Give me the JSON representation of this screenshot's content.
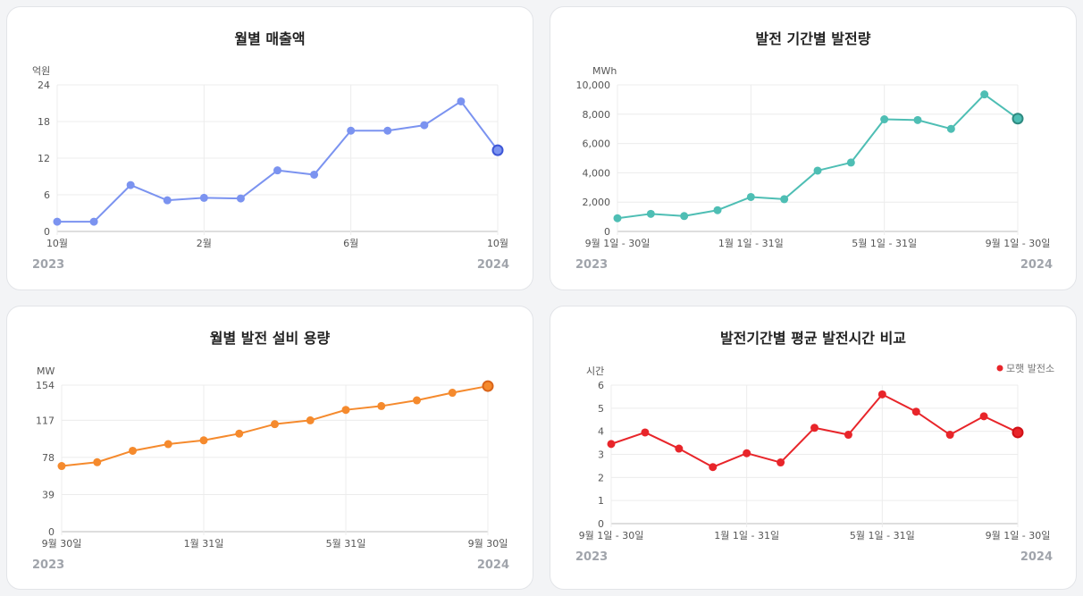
{
  "chart_data": [
    {
      "type": "line",
      "title": "월별 매출액",
      "ylabel": "억원",
      "ylim": [
        0,
        24
      ],
      "yticks": [
        "24",
        "18",
        "12",
        "6",
        "0"
      ],
      "yticks_values": [
        24,
        18,
        12,
        6,
        0
      ],
      "xticks": [
        {
          "i": 0,
          "label": "10월"
        },
        {
          "i": 4,
          "label": "2월"
        },
        {
          "i": 8,
          "label": "6월"
        },
        {
          "i": 12,
          "label": "10월"
        }
      ],
      "year_left": "2023",
      "year_right": "2024",
      "color": "#7b93f0",
      "last_color": "#3d56d6",
      "series": [
        {
          "values": [
            1.6,
            1.6,
            7.6,
            5.1,
            5.5,
            5.4,
            10.0,
            9.3,
            16.5,
            16.5,
            17.4,
            21.3,
            13.3
          ]
        }
      ],
      "grid": true
    },
    {
      "type": "line",
      "title": "발전 기간별 발전량",
      "ylabel": "MWh",
      "ylim": [
        0,
        10000
      ],
      "yticks": [
        "10,000",
        "8,000",
        "6,000",
        "4,000",
        "2,000",
        "0"
      ],
      "yticks_values": [
        10000,
        8000,
        6000,
        4000,
        2000,
        0
      ],
      "xticks": [
        {
          "i": 0,
          "label": "9월 1일 - 30일"
        },
        {
          "i": 4,
          "label": "1월 1일 - 31일"
        },
        {
          "i": 8,
          "label": "5월 1일 - 31일"
        },
        {
          "i": 12,
          "label": "9월 1일 - 30일"
        }
      ],
      "year_left": "2023",
      "year_right": "2024",
      "color": "#4ebeb4",
      "last_color": "#2e8a80",
      "series": [
        {
          "values": [
            900,
            1200,
            1050,
            1450,
            2350,
            2200,
            4150,
            4700,
            7650,
            7600,
            7000,
            9350,
            7700
          ]
        }
      ],
      "grid": true
    },
    {
      "type": "line",
      "title": "월별 발전 설비 용량",
      "ylabel": "MW",
      "ylim": [
        0,
        154
      ],
      "yticks": [
        "154",
        "117",
        "78",
        "39",
        "0"
      ],
      "yticks_values": [
        154,
        117,
        78,
        39,
        0
      ],
      "xticks": [
        {
          "i": 0,
          "label": "9월 30일"
        },
        {
          "i": 4,
          "label": "1월 31일"
        },
        {
          "i": 8,
          "label": "5월 31일"
        },
        {
          "i": 12,
          "label": "9월 30일"
        }
      ],
      "year_left": "2023",
      "year_right": "2024",
      "color": "#f58a2d",
      "last_color": "#d9641a",
      "series": [
        {
          "values": [
            69,
            73,
            85,
            92,
            96,
            103,
            113,
            117,
            128,
            132,
            138,
            146,
            153
          ]
        }
      ],
      "grid": true
    },
    {
      "type": "line",
      "title": "발전기간별 평균 발전시간 비교",
      "ylabel": "시간",
      "ylim": [
        0,
        6
      ],
      "yticks": [
        "6",
        "5",
        "4",
        "3",
        "2",
        "1",
        "0"
      ],
      "yticks_values": [
        6,
        5,
        4,
        3,
        2,
        1,
        0
      ],
      "xticks": [
        {
          "i": 0,
          "label": "9월 1일 - 30일"
        },
        {
          "i": 4,
          "label": "1월 1일 - 31일"
        },
        {
          "i": 8,
          "label": "5월 1일 - 31일"
        },
        {
          "i": 12,
          "label": "9월 1일 - 30일"
        }
      ],
      "year_left": "2023",
      "year_right": "2024",
      "color": "#e8252a",
      "last_color": "#d01016",
      "legend": "모햇 발전소",
      "series": [
        {
          "name": "모햇 발전소",
          "values": [
            3.45,
            3.95,
            3.25,
            2.45,
            3.05,
            2.65,
            4.15,
            3.85,
            5.6,
            4.85,
            3.85,
            4.65,
            3.95
          ]
        }
      ],
      "grid": true
    }
  ]
}
